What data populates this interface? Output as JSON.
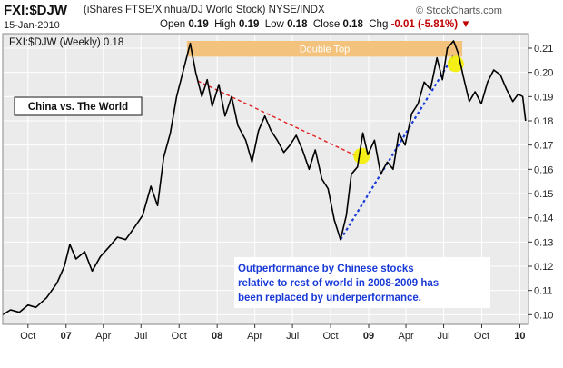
{
  "header": {
    "symbol": "FXI:$DJW",
    "description": "(iShares FTSE/Xinhua/DJ World Stock)  NYSE/INDX",
    "brand": "© StockCharts.com",
    "date": "15-Jan-2010",
    "open_label": "Open",
    "open": "0.19",
    "high_label": "High",
    "high": "0.19",
    "low_label": "Low",
    "low": "0.18",
    "close_label": "Close",
    "close": "0.18",
    "chg_label": "Chg",
    "chg": "-0.01 (-5.81%)"
  },
  "colors": {
    "price_line": "#000000",
    "resistance_line": "#e02020",
    "support_line": "#1a3ad8",
    "highlight": "#f5f000",
    "band": "#f3c27c",
    "annotation_text": "#1a3ad8",
    "plot_bg": "#ebebeb"
  },
  "chart_data": {
    "type": "line",
    "legend": "FXI:$DJW (Weekly) 0.18",
    "ylim": [
      0.096,
      0.216
    ],
    "yticks": [
      0.1,
      0.11,
      0.12,
      0.13,
      0.14,
      0.15,
      0.16,
      0.17,
      0.18,
      0.19,
      0.2,
      0.21
    ],
    "xticks": [
      {
        "label": "Oct",
        "date": "2006-10-01",
        "bold": false
      },
      {
        "label": "07",
        "date": "2007-01-01",
        "bold": true
      },
      {
        "label": "Apr",
        "date": "2007-04-01",
        "bold": false
      },
      {
        "label": "Jul",
        "date": "2007-07-01",
        "bold": false
      },
      {
        "label": "Oct",
        "date": "2007-10-01",
        "bold": false
      },
      {
        "label": "08",
        "date": "2008-01-01",
        "bold": true
      },
      {
        "label": "Apr",
        "date": "2008-04-01",
        "bold": false
      },
      {
        "label": "Jul",
        "date": "2008-07-01",
        "bold": false
      },
      {
        "label": "Oct",
        "date": "2008-10-01",
        "bold": false
      },
      {
        "label": "09",
        "date": "2009-01-01",
        "bold": true
      },
      {
        "label": "Apr",
        "date": "2009-04-01",
        "bold": false
      },
      {
        "label": "Jul",
        "date": "2009-07-01",
        "bold": false
      },
      {
        "label": "Oct",
        "date": "2009-10-01",
        "bold": false
      },
      {
        "label": "10",
        "date": "2010-01-01",
        "bold": true
      }
    ],
    "xrange": [
      "2006-08-01",
      "2010-01-22"
    ],
    "series": [
      {
        "values": [
          [
            "2006-08-01",
            0.1
          ],
          [
            "2006-08-20",
            0.102
          ],
          [
            "2006-09-10",
            0.101
          ],
          [
            "2006-10-01",
            0.104
          ],
          [
            "2006-10-20",
            0.103
          ],
          [
            "2006-11-15",
            0.107
          ],
          [
            "2006-12-10",
            0.113
          ],
          [
            "2006-12-28",
            0.12
          ],
          [
            "2007-01-10",
            0.129
          ],
          [
            "2007-01-25",
            0.123
          ],
          [
            "2007-02-15",
            0.126
          ],
          [
            "2007-03-05",
            0.118
          ],
          [
            "2007-03-25",
            0.124
          ],
          [
            "2007-04-15",
            0.128
          ],
          [
            "2007-05-05",
            0.132
          ],
          [
            "2007-05-25",
            0.131
          ],
          [
            "2007-06-15",
            0.136
          ],
          [
            "2007-07-05",
            0.141
          ],
          [
            "2007-07-25",
            0.153
          ],
          [
            "2007-08-10",
            0.145
          ],
          [
            "2007-08-25",
            0.165
          ],
          [
            "2007-09-10",
            0.175
          ],
          [
            "2007-09-25",
            0.19
          ],
          [
            "2007-10-10",
            0.2
          ],
          [
            "2007-10-28",
            0.212
          ],
          [
            "2007-11-10",
            0.2
          ],
          [
            "2007-11-25",
            0.19
          ],
          [
            "2007-12-08",
            0.197
          ],
          [
            "2007-12-20",
            0.186
          ],
          [
            "2008-01-05",
            0.195
          ],
          [
            "2008-01-20",
            0.182
          ],
          [
            "2008-02-05",
            0.19
          ],
          [
            "2008-02-20",
            0.178
          ],
          [
            "2008-03-10",
            0.172
          ],
          [
            "2008-03-25",
            0.163
          ],
          [
            "2008-04-10",
            0.176
          ],
          [
            "2008-04-25",
            0.182
          ],
          [
            "2008-05-10",
            0.176
          ],
          [
            "2008-05-25",
            0.172
          ],
          [
            "2008-06-10",
            0.167
          ],
          [
            "2008-06-25",
            0.17
          ],
          [
            "2008-07-10",
            0.174
          ],
          [
            "2008-07-25",
            0.168
          ],
          [
            "2008-08-10",
            0.16
          ],
          [
            "2008-08-25",
            0.168
          ],
          [
            "2008-09-10",
            0.156
          ],
          [
            "2008-09-25",
            0.152
          ],
          [
            "2008-10-10",
            0.139
          ],
          [
            "2008-10-25",
            0.131
          ],
          [
            "2008-11-08",
            0.141
          ],
          [
            "2008-11-20",
            0.158
          ],
          [
            "2008-12-05",
            0.161
          ],
          [
            "2008-12-18",
            0.175
          ],
          [
            "2008-12-30",
            0.166
          ],
          [
            "2009-01-15",
            0.172
          ],
          [
            "2009-01-30",
            0.158
          ],
          [
            "2009-02-15",
            0.163
          ],
          [
            "2009-03-01",
            0.16
          ],
          [
            "2009-03-15",
            0.175
          ],
          [
            "2009-03-30",
            0.17
          ],
          [
            "2009-04-15",
            0.183
          ],
          [
            "2009-04-30",
            0.187
          ],
          [
            "2009-05-15",
            0.196
          ],
          [
            "2009-05-30",
            0.193
          ],
          [
            "2009-06-15",
            0.206
          ],
          [
            "2009-06-28",
            0.197
          ],
          [
            "2009-07-10",
            0.21
          ],
          [
            "2009-07-25",
            0.213
          ],
          [
            "2009-08-05",
            0.208
          ],
          [
            "2009-08-18",
            0.198
          ],
          [
            "2009-09-01",
            0.188
          ],
          [
            "2009-09-15",
            0.192
          ],
          [
            "2009-09-30",
            0.187
          ],
          [
            "2009-10-15",
            0.196
          ],
          [
            "2009-10-30",
            0.201
          ],
          [
            "2009-11-15",
            0.199
          ],
          [
            "2009-11-30",
            0.193
          ],
          [
            "2009-12-15",
            0.188
          ],
          [
            "2009-12-28",
            0.191
          ],
          [
            "2010-01-08",
            0.19
          ],
          [
            "2010-01-15",
            0.18
          ]
        ]
      }
    ],
    "band": {
      "label": "Double Top",
      "from": "2007-10-20",
      "to": "2009-08-15",
      "ymin": 0.2065,
      "ymax": 0.213
    },
    "trendlines": [
      {
        "role": "resistance",
        "from": [
          "2007-11-15",
          0.1965
        ],
        "to": [
          "2008-12-15",
          0.1645
        ]
      },
      {
        "role": "support",
        "from": [
          "2008-10-25",
          0.131
        ],
        "to": [
          "2009-07-25",
          0.207
        ]
      }
    ],
    "highlights": [
      {
        "date": "2008-12-15",
        "value": 0.1655
      },
      {
        "date": "2009-07-30",
        "value": 0.2035
      }
    ],
    "annotations": [
      {
        "text": "China vs. The World"
      },
      {
        "lines": [
          "Outperformance by Chinese stocks",
          "relative to rest of world in 2008-2009 has",
          "been replaced by underperformance."
        ]
      }
    ]
  }
}
